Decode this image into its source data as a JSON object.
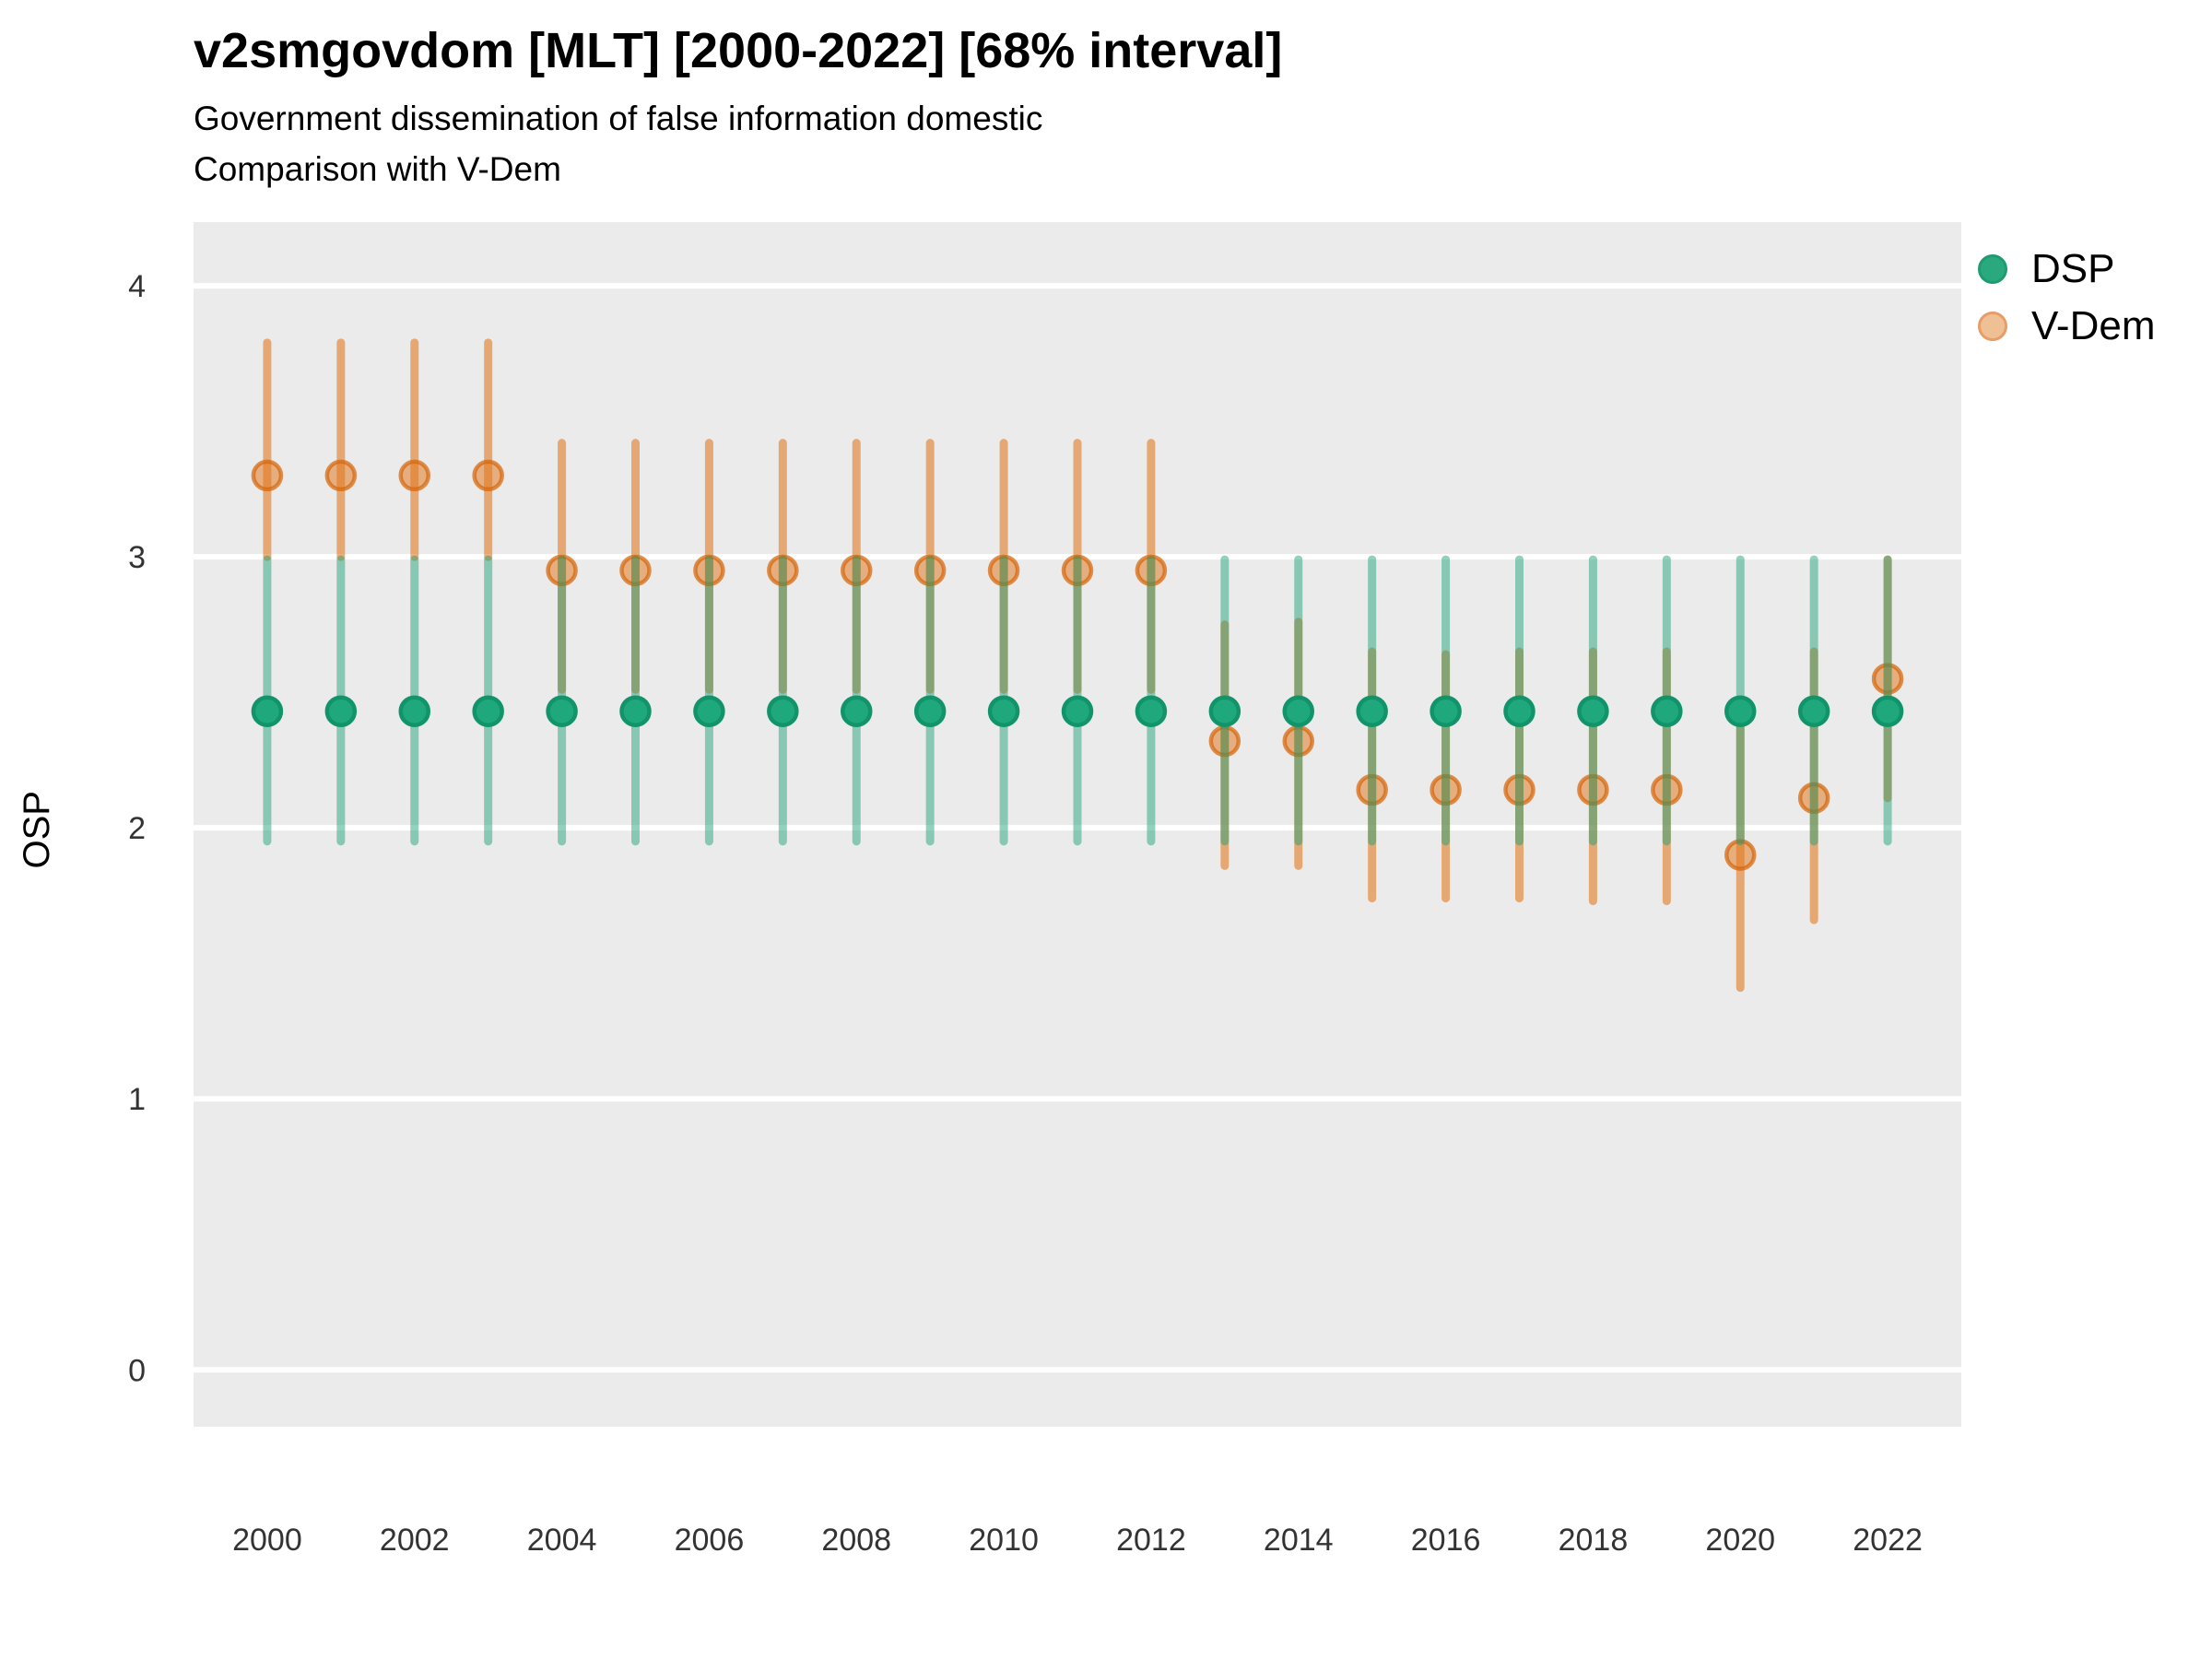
{
  "header": {
    "title": "v2smgovdom [MLT] [2000-2022] [68% interval]",
    "subtitle1": "Government dissemination of false information domestic",
    "subtitle2": "Comparison with V-Dem"
  },
  "y_axis_title": "OSP",
  "legend": {
    "items": [
      {
        "label": "DSP",
        "color": "#1B9E77"
      },
      {
        "label": "V-Dem",
        "color": "#D95F02"
      }
    ]
  },
  "colors": {
    "panel_background": "#EBEBEB",
    "gridline": "#FFFFFF",
    "dsp_point_fill": "#1EA87B",
    "dsp_point_stroke": "#12946B",
    "dsp_bar_base": "#1B9E77",
    "vdem_base": "#E2771B",
    "vdem_point_stroke": "#D5650A",
    "legend_dsp_swatch": "#2AA87E",
    "legend_vdem_fill": "#F0C095",
    "legend_vdem_stroke": "#E89C66",
    "tick_label": "#333333"
  },
  "chart_data": {
    "type": "pointrange",
    "title": "v2smgovdom [MLT] [2000-2022] [68% interval]",
    "subtitle": "Government dissemination of false information domestic — Comparison with V-Dem",
    "xlabel": "",
    "ylabel": "OSP",
    "interval": "68%",
    "x": [
      2000,
      2001,
      2002,
      2003,
      2004,
      2005,
      2006,
      2007,
      2008,
      2009,
      2010,
      2011,
      2012,
      2013,
      2014,
      2015,
      2016,
      2017,
      2018,
      2019,
      2020,
      2021,
      2022
    ],
    "series": [
      {
        "name": "DSP",
        "values": [
          2.43,
          2.43,
          2.43,
          2.43,
          2.43,
          2.43,
          2.43,
          2.43,
          2.43,
          2.43,
          2.43,
          2.43,
          2.43,
          2.43,
          2.43,
          2.43,
          2.43,
          2.43,
          2.43,
          2.43,
          2.43,
          2.43,
          2.43
        ],
        "lower": [
          1.95,
          1.95,
          1.95,
          1.95,
          1.95,
          1.95,
          1.95,
          1.95,
          1.95,
          1.95,
          1.95,
          1.95,
          1.95,
          1.95,
          1.95,
          1.95,
          1.95,
          1.95,
          1.95,
          1.95,
          1.95,
          1.95,
          1.95
        ],
        "upper": [
          2.99,
          2.99,
          2.99,
          2.99,
          2.99,
          2.99,
          2.99,
          2.99,
          2.99,
          2.99,
          2.99,
          2.99,
          2.99,
          2.99,
          2.99,
          2.99,
          2.99,
          2.99,
          2.99,
          2.99,
          2.99,
          2.99,
          2.99
        ]
      },
      {
        "name": "V-Dem",
        "values": [
          3.3,
          3.3,
          3.3,
          3.3,
          2.95,
          2.95,
          2.95,
          2.95,
          2.95,
          2.95,
          2.95,
          2.95,
          2.95,
          2.32,
          2.32,
          2.14,
          2.14,
          2.14,
          2.14,
          2.14,
          1.9,
          2.11,
          2.55
        ],
        "lower": [
          3.0,
          3.0,
          3.0,
          3.0,
          2.51,
          2.51,
          2.51,
          2.51,
          2.51,
          2.51,
          2.51,
          2.51,
          2.51,
          1.86,
          1.86,
          1.74,
          1.74,
          1.74,
          1.73,
          1.73,
          1.41,
          1.66,
          2.11
        ],
        "upper": [
          3.79,
          3.79,
          3.79,
          3.79,
          3.42,
          3.42,
          3.42,
          3.42,
          3.42,
          3.42,
          3.42,
          3.42,
          3.42,
          2.75,
          2.76,
          2.65,
          2.64,
          2.65,
          2.65,
          2.65,
          2.39,
          2.65,
          2.99
        ]
      }
    ],
    "x_ticks": [
      2000,
      2002,
      2004,
      2006,
      2008,
      2010,
      2012,
      2014,
      2016,
      2018,
      2020,
      2022
    ],
    "y_ticks": [
      0,
      1,
      2,
      3,
      4
    ],
    "xlim": [
      1999,
      2023
    ],
    "ylim": [
      -0.21,
      4.235
    ],
    "grid": "white major gridlines on gray panel",
    "legend_position": "top-right"
  }
}
